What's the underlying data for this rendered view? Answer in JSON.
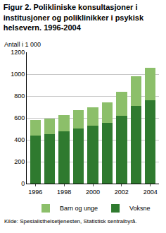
{
  "chart_data": {
    "type": "bar",
    "title": "Figur 2. Polikliniske konsultasjoner i\ninstitusjoner og poliklinikker i psykisk\nhelsevern. 1996-2004",
    "ylabel": "Antall i 1 000",
    "source": "Kilde: Spesialisthelsetjenesten, Statistisk sentralbyrå.",
    "categories": [
      "1996",
      null,
      "1998",
      null,
      "2000",
      null,
      "2002",
      null,
      "2004"
    ],
    "series": [
      {
        "name": "Voksne",
        "color": "#2f7a2f",
        "values": [
          440,
          452,
          478,
          505,
          530,
          555,
          620,
          710,
          760
        ]
      },
      {
        "name": "Barn og unge",
        "color": "#8cbf6a",
        "values": [
          138,
          143,
          147,
          165,
          170,
          185,
          218,
          270,
          295
        ]
      }
    ],
    "stacked": true,
    "ylim": [
      0,
      1200
    ],
    "yticks": [
      0,
      200,
      400,
      600,
      800,
      1000,
      1200
    ],
    "grid": true,
    "legend": "bottom"
  }
}
